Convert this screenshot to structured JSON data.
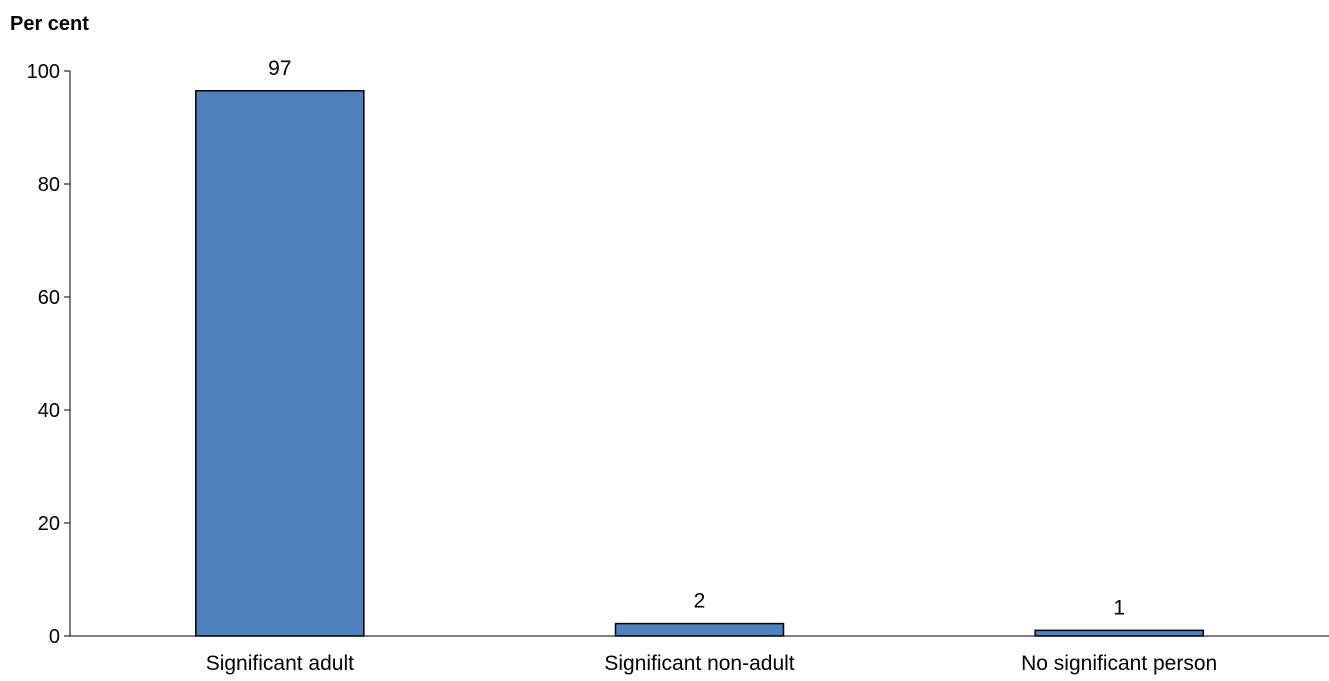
{
  "chart_data": {
    "type": "bar",
    "title": "",
    "xlabel": "",
    "ylabel": "Per cent",
    "categories": [
      "Significant adult",
      "Significant non-adult",
      "No significant person"
    ],
    "values": [
      96.5,
      2.2,
      1.0
    ],
    "data_labels": [
      "97",
      "2",
      "1"
    ],
    "ylim": [
      0,
      100
    ],
    "yticks": [
      0,
      20,
      40,
      60,
      80,
      100
    ],
    "ytick_labels": [
      "0",
      "20",
      "40",
      "60",
      "80",
      "100"
    ],
    "grid": false,
    "legend": "none",
    "bar_color": "#4f81bd",
    "bar_edge_color": "#000000"
  }
}
